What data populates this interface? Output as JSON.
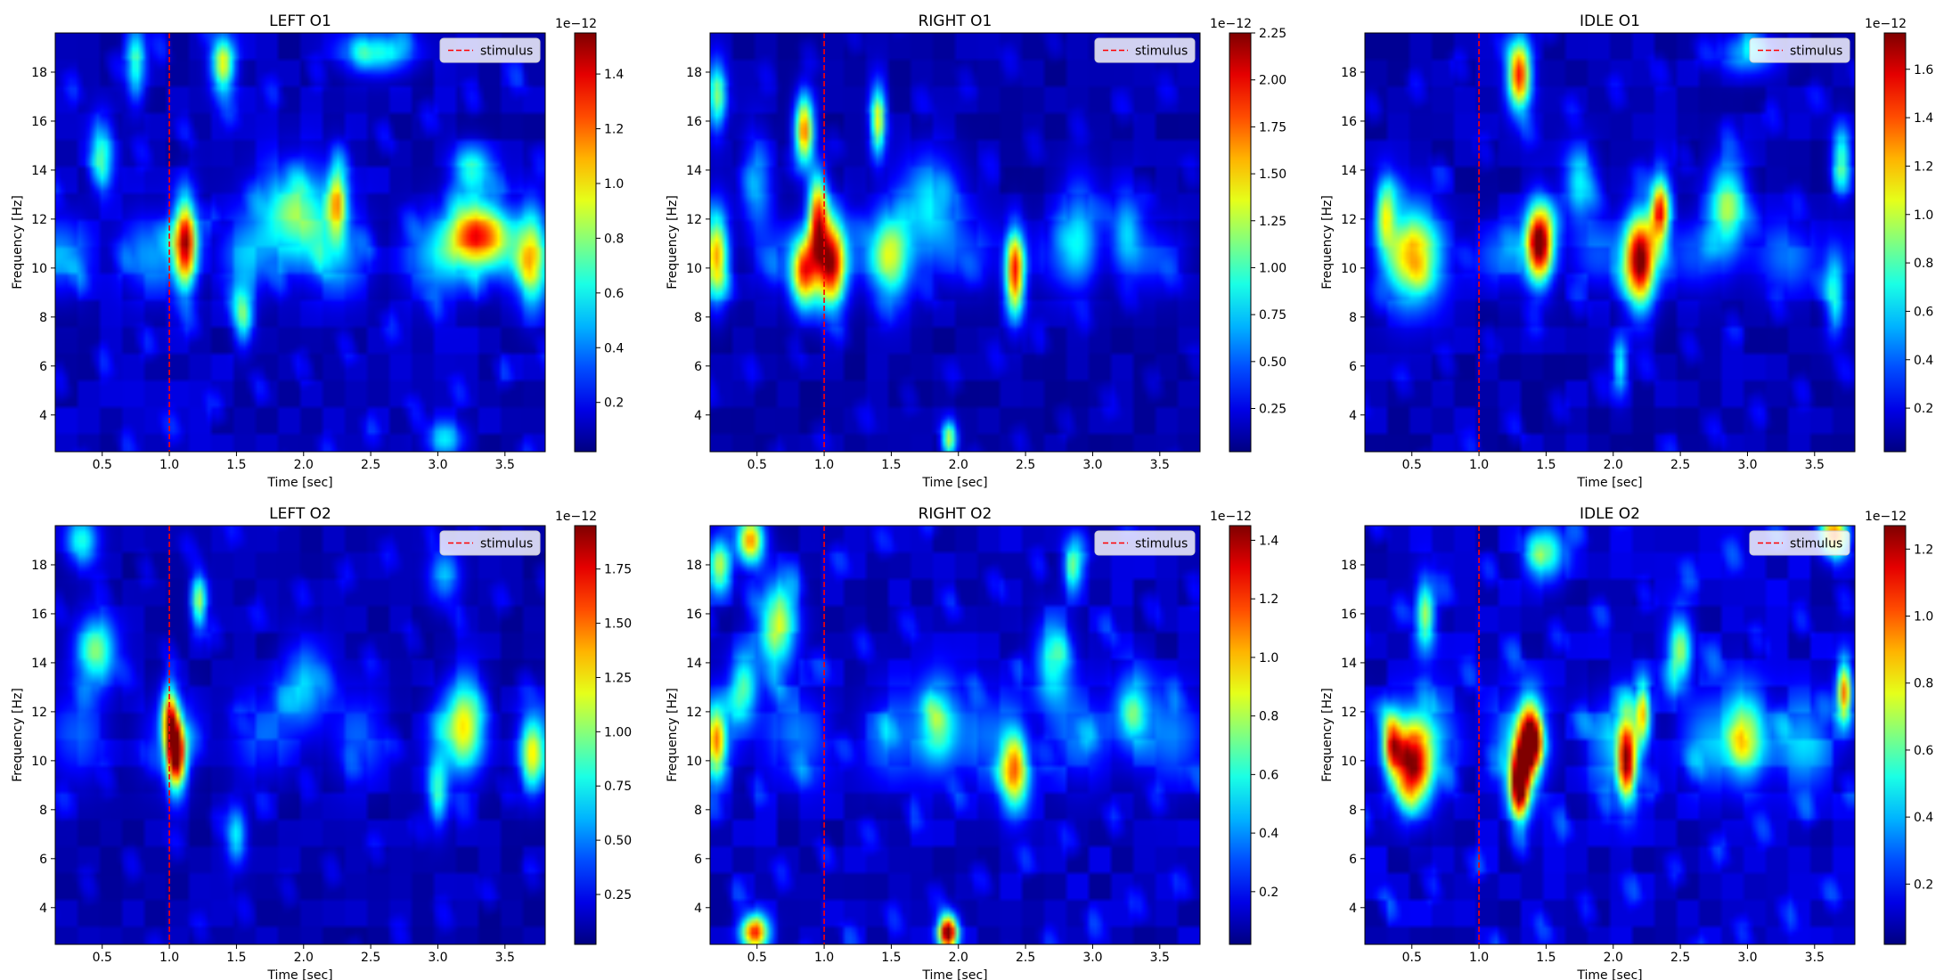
{
  "chart_data": [
    {
      "type": "heatmap",
      "title": "LEFT O1",
      "xlabel": "Time [sec]",
      "ylabel": "Frequency [Hz]",
      "xlim": [
        0.15,
        3.8
      ],
      "ylim": [
        2.5,
        19.6
      ],
      "xticks": [
        0.5,
        1.0,
        1.5,
        2.0,
        2.5,
        3.0,
        3.5
      ],
      "yticks": [
        4,
        6,
        8,
        10,
        12,
        14,
        16,
        18
      ],
      "stimulus_line": {
        "x": 1.0,
        "label": "stimulus",
        "color": "#ff0000"
      },
      "legend": {
        "location": "top-right",
        "entries": [
          "stimulus"
        ]
      },
      "colormap": "jet",
      "colorbar": {
        "range": [
          0.02,
          1.55
        ],
        "ticks": [
          "0.2",
          "0.4",
          "0.6",
          "0.8",
          "1.0",
          "1.2",
          "1.4"
        ],
        "exponent": "1e−12"
      },
      "baseline_band": {
        "center_hz": 10.5,
        "width_hz": 2.2,
        "level": 0.34
      },
      "hotspots": [
        {
          "t": 1.12,
          "f": 11.0,
          "power": 1.3,
          "st": 0.06,
          "sf": 1.3
        },
        {
          "t": 3.3,
          "f": 11.3,
          "power": 1.2,
          "st": 0.16,
          "sf": 1.0
        },
        {
          "t": 1.4,
          "f": 18.3,
          "power": 0.9,
          "st": 0.06,
          "sf": 0.8
        },
        {
          "t": 1.95,
          "f": 12.2,
          "power": 0.7,
          "st": 0.18,
          "sf": 1.3
        },
        {
          "t": 2.25,
          "f": 12.8,
          "power": 0.8,
          "st": 0.05,
          "sf": 1.1
        },
        {
          "t": 0.5,
          "f": 14.7,
          "power": 0.55,
          "st": 0.06,
          "sf": 1.0
        },
        {
          "t": 1.55,
          "f": 8.0,
          "power": 0.6,
          "st": 0.05,
          "sf": 0.8
        },
        {
          "t": 0.75,
          "f": 18.3,
          "power": 0.6,
          "st": 0.05,
          "sf": 1.0
        },
        {
          "t": 2.55,
          "f": 18.8,
          "power": 0.55,
          "st": 0.18,
          "sf": 0.6
        },
        {
          "t": 3.25,
          "f": 14.0,
          "power": 0.55,
          "st": 0.1,
          "sf": 0.7
        },
        {
          "t": 3.05,
          "f": 3.0,
          "power": 0.45,
          "st": 0.1,
          "sf": 0.5
        },
        {
          "t": 3.7,
          "f": 10.5,
          "power": 0.6,
          "st": 0.07,
          "sf": 1.5
        }
      ]
    },
    {
      "type": "heatmap",
      "title": "RIGHT O1",
      "xlabel": "Time [sec]",
      "ylabel": "Frequency [Hz]",
      "xlim": [
        0.15,
        3.8
      ],
      "ylim": [
        2.5,
        19.6
      ],
      "xticks": [
        0.5,
        1.0,
        1.5,
        2.0,
        2.5,
        3.0,
        3.5
      ],
      "yticks": [
        4,
        6,
        8,
        10,
        12,
        14,
        16,
        18
      ],
      "stimulus_line": {
        "x": 1.0,
        "label": "stimulus",
        "color": "#ff0000"
      },
      "legend": {
        "location": "top-right",
        "entries": [
          "stimulus"
        ]
      },
      "colormap": "jet",
      "colorbar": {
        "range": [
          0.02,
          2.25
        ],
        "ticks": [
          "0.25",
          "0.50",
          "0.75",
          "1.00",
          "1.25",
          "1.50",
          "1.75",
          "2.00",
          "2.25"
        ],
        "exponent": "1e−12"
      },
      "baseline_band": {
        "center_hz": 10.5,
        "width_hz": 2.0,
        "level": 0.32
      },
      "hotspots": [
        {
          "t": 1.05,
          "f": 10.2,
          "power": 2.0,
          "st": 0.08,
          "sf": 1.3
        },
        {
          "t": 0.85,
          "f": 9.8,
          "power": 1.6,
          "st": 0.07,
          "sf": 1.0
        },
        {
          "t": 0.95,
          "f": 12.2,
          "power": 1.6,
          "st": 0.05,
          "sf": 1.2
        },
        {
          "t": 0.85,
          "f": 15.6,
          "power": 1.6,
          "st": 0.05,
          "sf": 1.0
        },
        {
          "t": 2.42,
          "f": 9.8,
          "power": 1.8,
          "st": 0.05,
          "sf": 1.2
        },
        {
          "t": 0.2,
          "f": 10.5,
          "power": 1.4,
          "st": 0.06,
          "sf": 1.3
        },
        {
          "t": 1.4,
          "f": 16.0,
          "power": 1.2,
          "st": 0.04,
          "sf": 1.0
        },
        {
          "t": 0.2,
          "f": 17.0,
          "power": 1.0,
          "st": 0.05,
          "sf": 1.0
        },
        {
          "t": 1.5,
          "f": 10.5,
          "power": 0.95,
          "st": 0.1,
          "sf": 1.3
        },
        {
          "t": 1.93,
          "f": 3.0,
          "power": 1.2,
          "st": 0.04,
          "sf": 0.5
        },
        {
          "t": 1.8,
          "f": 12.5,
          "power": 0.7,
          "st": 0.15,
          "sf": 1.5
        },
        {
          "t": 2.9,
          "f": 11.5,
          "power": 0.6,
          "st": 0.1,
          "sf": 1.5
        },
        {
          "t": 3.25,
          "f": 11.5,
          "power": 0.6,
          "st": 0.08,
          "sf": 1.2
        },
        {
          "t": 0.5,
          "f": 13.5,
          "power": 0.55,
          "st": 0.08,
          "sf": 1.4
        }
      ]
    },
    {
      "type": "heatmap",
      "title": "IDLE O1",
      "xlabel": "Time [sec]",
      "ylabel": "Frequency [Hz]",
      "xlim": [
        0.15,
        3.8
      ],
      "ylim": [
        2.5,
        19.6
      ],
      "xticks": [
        0.5,
        1.0,
        1.5,
        2.0,
        2.5,
        3.0,
        3.5
      ],
      "yticks": [
        4,
        6,
        8,
        10,
        12,
        14,
        16,
        18
      ],
      "stimulus_line": {
        "x": 1.0,
        "label": "stimulus",
        "color": "#ff0000"
      },
      "legend": {
        "location": "top-right",
        "entries": [
          "stimulus"
        ]
      },
      "colormap": "jet",
      "colorbar": {
        "range": [
          0.02,
          1.75
        ],
        "ticks": [
          "0.2",
          "0.4",
          "0.6",
          "0.8",
          "1.0",
          "1.2",
          "1.4",
          "1.6"
        ],
        "exponent": "1e−12"
      },
      "baseline_band": {
        "center_hz": 10.5,
        "width_hz": 2.0,
        "level": 0.3
      },
      "hotspots": [
        {
          "t": 1.45,
          "f": 11.0,
          "power": 1.75,
          "st": 0.07,
          "sf": 1.1
        },
        {
          "t": 2.2,
          "f": 10.3,
          "power": 1.7,
          "st": 0.08,
          "sf": 1.3
        },
        {
          "t": 2.35,
          "f": 12.3,
          "power": 1.3,
          "st": 0.05,
          "sf": 1.0
        },
        {
          "t": 1.3,
          "f": 17.9,
          "power": 1.4,
          "st": 0.06,
          "sf": 1.0
        },
        {
          "t": 0.5,
          "f": 10.5,
          "power": 0.85,
          "st": 0.15,
          "sf": 1.4
        },
        {
          "t": 0.3,
          "f": 12.3,
          "power": 0.8,
          "st": 0.05,
          "sf": 1.0
        },
        {
          "t": 2.85,
          "f": 12.5,
          "power": 0.8,
          "st": 0.1,
          "sf": 1.3
        },
        {
          "t": 3.7,
          "f": 14.5,
          "power": 0.7,
          "st": 0.05,
          "sf": 0.9
        },
        {
          "t": 2.05,
          "f": 6.0,
          "power": 0.6,
          "st": 0.04,
          "sf": 0.8
        },
        {
          "t": 1.75,
          "f": 13.5,
          "power": 0.6,
          "st": 0.08,
          "sf": 1.0
        },
        {
          "t": 3.0,
          "f": 18.8,
          "power": 0.5,
          "st": 0.15,
          "sf": 0.6
        },
        {
          "t": 3.65,
          "f": 9.0,
          "power": 0.6,
          "st": 0.05,
          "sf": 1.2
        }
      ]
    },
    {
      "type": "heatmap",
      "title": "LEFT O2",
      "xlabel": "Time [sec]",
      "ylabel": "Frequency [Hz]",
      "xlim": [
        0.15,
        3.8
      ],
      "ylim": [
        2.5,
        19.6
      ],
      "xticks": [
        0.5,
        1.0,
        1.5,
        2.0,
        2.5,
        3.0,
        3.5
      ],
      "yticks": [
        4,
        6,
        8,
        10,
        12,
        14,
        16,
        18
      ],
      "stimulus_line": {
        "x": 1.0,
        "label": "stimulus",
        "color": "#ff0000"
      },
      "legend": {
        "location": "top-right",
        "entries": [
          "stimulus"
        ]
      },
      "colormap": "jet",
      "colorbar": {
        "range": [
          0.02,
          1.95
        ],
        "ticks": [
          "0.25",
          "0.50",
          "0.75",
          "1.00",
          "1.25",
          "1.50",
          "1.75"
        ],
        "exponent": "1e−12"
      },
      "baseline_band": {
        "center_hz": 11.0,
        "width_hz": 2.6,
        "level": 0.3
      },
      "hotspots": [
        {
          "t": 1.05,
          "f": 10.3,
          "power": 1.9,
          "st": 0.05,
          "sf": 1.0
        },
        {
          "t": 1.0,
          "f": 11.8,
          "power": 1.2,
          "st": 0.04,
          "sf": 0.9
        },
        {
          "t": 1.22,
          "f": 16.5,
          "power": 0.9,
          "st": 0.04,
          "sf": 0.8
        },
        {
          "t": 0.45,
          "f": 14.5,
          "power": 0.85,
          "st": 0.1,
          "sf": 1.0
        },
        {
          "t": 0.35,
          "f": 19.0,
          "power": 0.7,
          "st": 0.08,
          "sf": 0.7
        },
        {
          "t": 3.2,
          "f": 11.5,
          "power": 0.9,
          "st": 0.1,
          "sf": 1.3
        },
        {
          "t": 3.7,
          "f": 10.2,
          "power": 0.9,
          "st": 0.06,
          "sf": 1.0
        },
        {
          "t": 3.0,
          "f": 8.8,
          "power": 0.7,
          "st": 0.05,
          "sf": 1.0
        },
        {
          "t": 1.5,
          "f": 7.0,
          "power": 0.65,
          "st": 0.05,
          "sf": 0.8
        },
        {
          "t": 2.0,
          "f": 13.0,
          "power": 0.55,
          "st": 0.12,
          "sf": 1.2
        },
        {
          "t": 3.05,
          "f": 17.5,
          "power": 0.5,
          "st": 0.08,
          "sf": 0.8
        }
      ]
    },
    {
      "type": "heatmap",
      "title": "RIGHT O2",
      "xlabel": "Time [sec]",
      "ylabel": "Frequency [Hz]",
      "xlim": [
        0.15,
        3.8
      ],
      "ylim": [
        2.5,
        19.6
      ],
      "xticks": [
        0.5,
        1.0,
        1.5,
        2.0,
        2.5,
        3.0,
        3.5
      ],
      "yticks": [
        4,
        6,
        8,
        10,
        12,
        14,
        16,
        18
      ],
      "stimulus_line": {
        "x": 1.0,
        "label": "stimulus",
        "color": "#ff0000"
      },
      "legend": {
        "location": "top-right",
        "entries": [
          "stimulus"
        ]
      },
      "colormap": "jet",
      "colorbar": {
        "range": [
          0.02,
          1.45
        ],
        "ticks": [
          "0.2",
          "0.4",
          "0.6",
          "0.8",
          "1.0",
          "1.2",
          "1.4"
        ],
        "exponent": "1e−12"
      },
      "baseline_band": {
        "center_hz": 11.0,
        "width_hz": 2.6,
        "level": 0.26
      },
      "hotspots": [
        {
          "t": 1.92,
          "f": 3.0,
          "power": 1.45,
          "st": 0.05,
          "sf": 0.5
        },
        {
          "t": 0.48,
          "f": 3.0,
          "power": 1.1,
          "st": 0.07,
          "sf": 0.5
        },
        {
          "t": 0.45,
          "f": 19.0,
          "power": 1.0,
          "st": 0.07,
          "sf": 0.7
        },
        {
          "t": 2.42,
          "f": 9.6,
          "power": 0.95,
          "st": 0.07,
          "sf": 1.1
        },
        {
          "t": 0.65,
          "f": 15.5,
          "power": 0.75,
          "st": 0.1,
          "sf": 1.3
        },
        {
          "t": 0.2,
          "f": 10.8,
          "power": 0.8,
          "st": 0.05,
          "sf": 1.0
        },
        {
          "t": 0.22,
          "f": 18.0,
          "power": 0.7,
          "st": 0.06,
          "sf": 0.8
        },
        {
          "t": 0.4,
          "f": 13.0,
          "power": 0.55,
          "st": 0.07,
          "sf": 1.0
        },
        {
          "t": 1.85,
          "f": 11.5,
          "power": 0.6,
          "st": 0.1,
          "sf": 1.2
        },
        {
          "t": 2.7,
          "f": 14.0,
          "power": 0.5,
          "st": 0.1,
          "sf": 1.2
        },
        {
          "t": 3.3,
          "f": 12.0,
          "power": 0.5,
          "st": 0.1,
          "sf": 1.2
        },
        {
          "t": 2.85,
          "f": 18.0,
          "power": 0.55,
          "st": 0.05,
          "sf": 0.8
        }
      ]
    },
    {
      "type": "heatmap",
      "title": "IDLE O2",
      "xlabel": "Time [sec]",
      "ylabel": "Frequency [Hz]",
      "xlim": [
        0.15,
        3.8
      ],
      "ylim": [
        2.5,
        19.6
      ],
      "xticks": [
        0.5,
        1.0,
        1.5,
        2.0,
        2.5,
        3.0,
        3.5
      ],
      "yticks": [
        4,
        6,
        8,
        10,
        12,
        14,
        16,
        18
      ],
      "stimulus_line": {
        "x": 1.0,
        "label": "stimulus",
        "color": "#ff0000"
      },
      "legend": {
        "location": "top-right",
        "entries": [
          "stimulus"
        ]
      },
      "colormap": "jet",
      "colorbar": {
        "range": [
          0.02,
          1.27
        ],
        "ticks": [
          "0.2",
          "0.4",
          "0.6",
          "0.8",
          "1.0",
          "1.2"
        ],
        "exponent": "1e−12"
      },
      "baseline_band": {
        "center_hz": 10.8,
        "width_hz": 2.6,
        "level": 0.3
      },
      "hotspots": [
        {
          "t": 1.3,
          "f": 9.0,
          "power": 1.25,
          "st": 0.05,
          "sf": 1.0
        },
        {
          "t": 1.38,
          "f": 10.8,
          "power": 1.1,
          "st": 0.06,
          "sf": 1.1
        },
        {
          "t": 0.5,
          "f": 9.8,
          "power": 1.05,
          "st": 0.1,
          "sf": 1.2
        },
        {
          "t": 0.35,
          "f": 10.8,
          "power": 0.75,
          "st": 0.05,
          "sf": 0.9
        },
        {
          "t": 2.1,
          "f": 10.0,
          "power": 1.0,
          "st": 0.05,
          "sf": 1.2
        },
        {
          "t": 2.22,
          "f": 12.0,
          "power": 0.7,
          "st": 0.04,
          "sf": 0.9
        },
        {
          "t": 3.65,
          "f": 19.2,
          "power": 0.95,
          "st": 0.07,
          "sf": 0.6
        },
        {
          "t": 3.72,
          "f": 12.8,
          "power": 0.9,
          "st": 0.04,
          "sf": 0.9
        },
        {
          "t": 0.6,
          "f": 16.0,
          "power": 0.6,
          "st": 0.05,
          "sf": 1.0
        },
        {
          "t": 2.5,
          "f": 14.5,
          "power": 0.6,
          "st": 0.06,
          "sf": 1.0
        },
        {
          "t": 3.0,
          "f": 11.0,
          "power": 0.6,
          "st": 0.1,
          "sf": 1.3
        },
        {
          "t": 1.5,
          "f": 18.5,
          "power": 0.55,
          "st": 0.1,
          "sf": 0.8
        }
      ]
    }
  ]
}
